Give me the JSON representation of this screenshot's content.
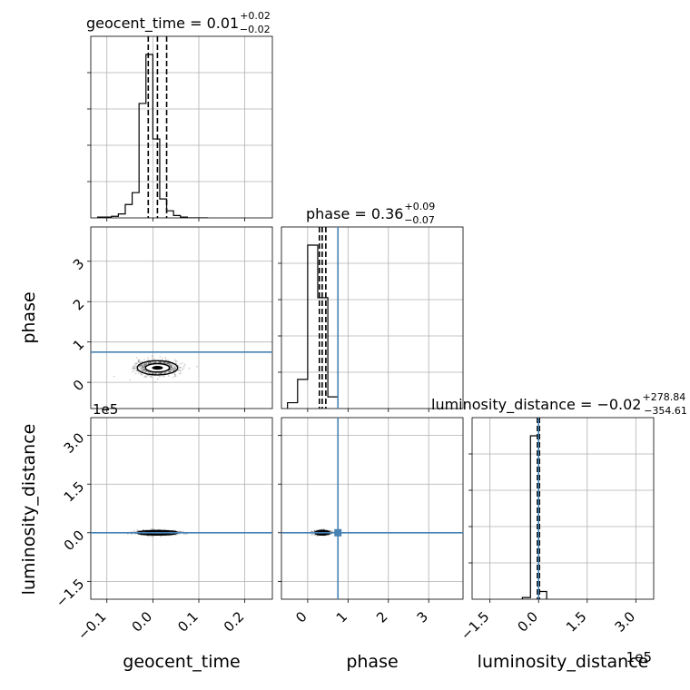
{
  "chart_data": {
    "type": "corner",
    "parameters": [
      "geocent_time",
      "phase",
      "luminosity_distance"
    ],
    "titles": [
      {
        "name": "geocent_time",
        "median": "0.01",
        "plus": "+0.02",
        "minus": "−0.02"
      },
      {
        "name": "phase",
        "median": "0.36",
        "plus": "+0.09",
        "minus": "−0.07"
      },
      {
        "name": "luminosity_distance",
        "median": "−0.02",
        "plus": "+278.84",
        "minus": "−354.61"
      }
    ],
    "axis_labels": {
      "x": [
        "geocent_time",
        "phase",
        "luminosity_distance"
      ],
      "y": [
        "phase",
        "luminosity_distance"
      ]
    },
    "offset_text": "1e5",
    "truth_color": "#4682b4",
    "truths": {
      "phase": 0.75,
      "luminosity_distance": 0.0
    },
    "ranges": {
      "geocent_time": [
        -0.135,
        0.26
      ],
      "phase": [
        -0.65,
        3.85
      ],
      "luminosity_distance": [
        -2.05,
        3.55
      ]
    },
    "ticks": {
      "geocent_time": {
        "values": [
          -0.1,
          0.0,
          0.1,
          0.2
        ],
        "labels": [
          "−0.1",
          "0.0",
          "0.1",
          "0.2"
        ]
      },
      "phase": {
        "values": [
          0,
          1,
          2,
          3
        ],
        "labels": [
          "0",
          "1",
          "2",
          "3"
        ]
      },
      "luminosity_distance": {
        "values": [
          -1.5,
          0.0,
          1.5,
          3.0
        ],
        "labels": [
          "−1.5",
          "0.0",
          "1.5",
          "3.0"
        ]
      }
    },
    "quantiles": {
      "geocent_time": [
        -0.01,
        0.01,
        0.03
      ],
      "phase": [
        0.29,
        0.36,
        0.45
      ],
      "luminosity_distance": [
        -0.0355,
        -0.0002,
        0.0279
      ]
    },
    "histograms": {
      "geocent_time": {
        "edges": [
          -0.12,
          -0.105,
          -0.09,
          -0.075,
          -0.06,
          -0.045,
          -0.03,
          -0.015,
          0.0,
          0.015,
          0.03,
          0.045,
          0.06,
          0.075,
          0.09,
          0.105,
          0.12
        ],
        "counts": [
          1,
          1,
          2,
          5,
          17,
          32,
          145,
          207,
          100,
          24,
          9,
          3,
          1,
          0,
          0,
          0
        ]
      },
      "phase": {
        "edges": [
          -0.5,
          -0.25,
          0.0,
          0.25,
          0.5,
          0.75
        ],
        "counts": [
          1,
          5,
          28,
          19,
          2
        ]
      },
      "luminosity_distance": {
        "edges": [
          -0.5,
          -0.25,
          0.0,
          0.25
        ],
        "counts": [
          2,
          190,
          9
        ]
      }
    },
    "grid": true
  }
}
